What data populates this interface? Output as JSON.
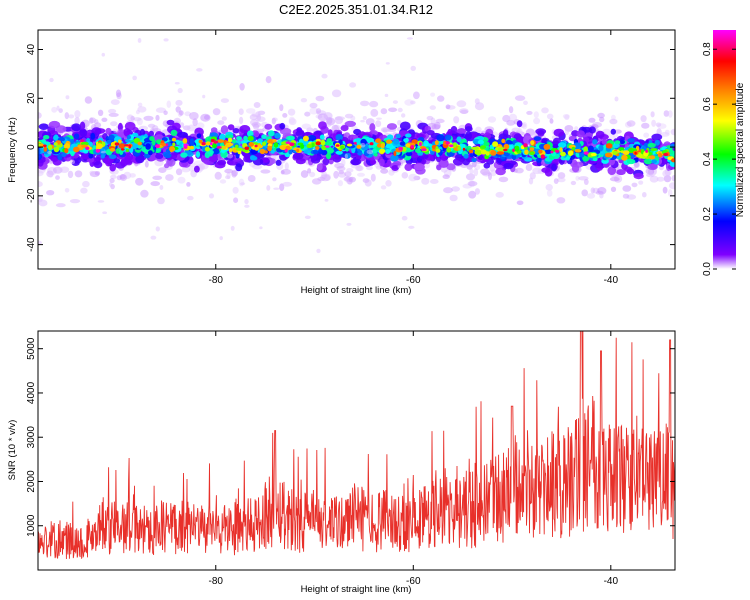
{
  "page_title": "C2E2.2025.351.01.34.R12",
  "chart_data": [
    {
      "type": "heatmap",
      "title": "",
      "xlabel": "Height of straight line (km)",
      "ylabel": "Frequency (Hz)",
      "xlim": [
        -98,
        -33.5
      ],
      "ylim": [
        -50,
        48
      ],
      "x_reversed": false,
      "x_ticks": [
        -80,
        -60,
        -40
      ],
      "y_ticks": [
        -40,
        -20,
        0,
        20,
        40
      ],
      "description_band_center_hz": {
        "x": [
          -98,
          -80,
          -60,
          -40,
          -34
        ],
        "y": [
          0,
          0.5,
          0,
          -2,
          -3
        ]
      },
      "colorbar": {
        "label": "Normalized spectral amplitude",
        "range": [
          0,
          0.87
        ],
        "ticks": [
          0,
          0.2,
          0.4,
          0.6,
          0.8
        ],
        "colormap": [
          "#ffffff",
          "#7f00ff",
          "#0000ff",
          "#00ffff",
          "#00ff00",
          "#ffff00",
          "#ff8000",
          "#ff0000",
          "#ff00ff"
        ]
      }
    },
    {
      "type": "line",
      "title": "",
      "xlabel": "Height of straight line (km)",
      "ylabel": "SNR (10 * v/v)",
      "xlim": [
        -98,
        -33.5
      ],
      "ylim": [
        0,
        5400
      ],
      "x_ticks": [
        -80,
        -60,
        -40
      ],
      "y_ticks": [
        1000,
        2000,
        3000,
        4000,
        5000
      ],
      "series": [
        {
          "name": "SNR",
          "color": "#e8302a",
          "x": [
            -98,
            -96,
            -94,
            -92,
            -90,
            -88,
            -86,
            -84,
            -82,
            -80,
            -78,
            -76,
            -74,
            -72,
            -70,
            -68,
            -66,
            -64,
            -62,
            -60,
            -58,
            -56,
            -54,
            -52,
            -50,
            -48,
            -46,
            -44,
            -42,
            -40,
            -38,
            -36,
            -34
          ],
          "y": [
            600,
            700,
            650,
            800,
            1000,
            900,
            950,
            1000,
            900,
            900,
            950,
            1000,
            1500,
            1100,
            1100,
            1000,
            1200,
            1100,
            1100,
            1100,
            1300,
            1300,
            1400,
            1500,
            1900,
            1700,
            1900,
            2000,
            2700,
            2100,
            2000,
            1900,
            2000
          ],
          "peaks": [
            {
              "x": -74,
              "y": 3150
            },
            {
              "x": -50,
              "y": 3700
            },
            {
              "x": -43,
              "y": 5400
            },
            {
              "x": -41,
              "y": 4950
            },
            {
              "x": -34,
              "y": 5200
            }
          ]
        }
      ]
    }
  ]
}
